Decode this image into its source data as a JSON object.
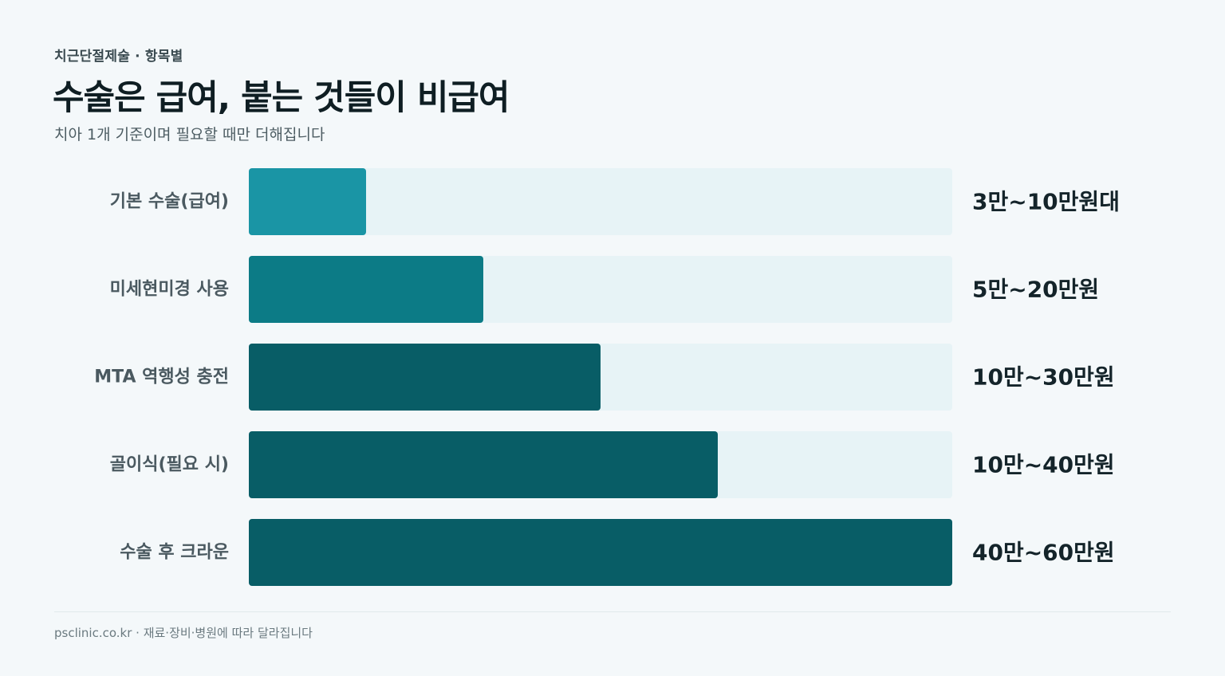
{
  "header": {
    "eyebrow": "치근단절제술 · 항목별",
    "title": "수술은 급여, 붙는 것들이 비급여",
    "subtitle": "치아 1개 기준이며 필요할 때만 더해집니다"
  },
  "chart_data": {
    "type": "bar",
    "orientation": "horizontal",
    "unit": "만원",
    "categories": [
      "기본 수술(급여)",
      "미세현미경 사용",
      "MTA 역행성 충전",
      "골이식(필요 시)",
      "수술 후 크라운"
    ],
    "ranges": [
      [
        3,
        10
      ],
      [
        5,
        20
      ],
      [
        10,
        30
      ],
      [
        10,
        40
      ],
      [
        40,
        60
      ]
    ],
    "value_labels": [
      "3만~10만원대",
      "5만~20만원",
      "10만~30만원",
      "10만~40만원",
      "40만~60만원"
    ],
    "xlim": [
      0,
      60
    ],
    "grid": false,
    "legend": "none"
  },
  "colors": {
    "bar_light": "#1a95a5",
    "bar_mid": "#0c7b86",
    "bar_dark": "#085d66",
    "track": "#e7f3f6"
  },
  "footer": {
    "text": "psclinic.co.kr · 재료·장비·병원에 따라 달라집니다"
  }
}
